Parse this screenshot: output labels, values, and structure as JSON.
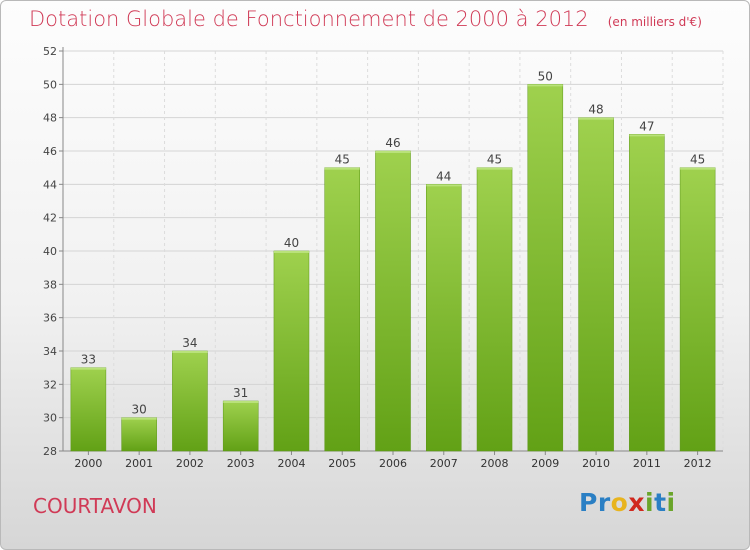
{
  "title": "Dotation Globale de Fonctionnement de 2000 à 2012",
  "subtitle": "(en milliers d'€)",
  "commune": "COURTAVON",
  "logo": {
    "letters": [
      "P",
      "r",
      "o",
      "x",
      "i",
      "t",
      "i"
    ],
    "colors": [
      "#2a7fc4",
      "#2a7fc4",
      "#e8b41e",
      "#d0281e",
      "#6aa52a",
      "#2a7fc4",
      "#6aa52a"
    ]
  },
  "chart_data": {
    "type": "bar",
    "categories": [
      "2000",
      "2001",
      "2002",
      "2003",
      "2004",
      "2005",
      "2006",
      "2007",
      "2008",
      "2009",
      "2010",
      "2011",
      "2012"
    ],
    "values": [
      33,
      30,
      34,
      31,
      40,
      45,
      46,
      44,
      45,
      50,
      48,
      47,
      45
    ],
    "ylim": [
      28,
      52
    ],
    "yticks": [
      28,
      30,
      32,
      34,
      36,
      38,
      40,
      42,
      44,
      46,
      48,
      50,
      52
    ],
    "grid": true,
    "bar_color": "#7cbc2c"
  }
}
